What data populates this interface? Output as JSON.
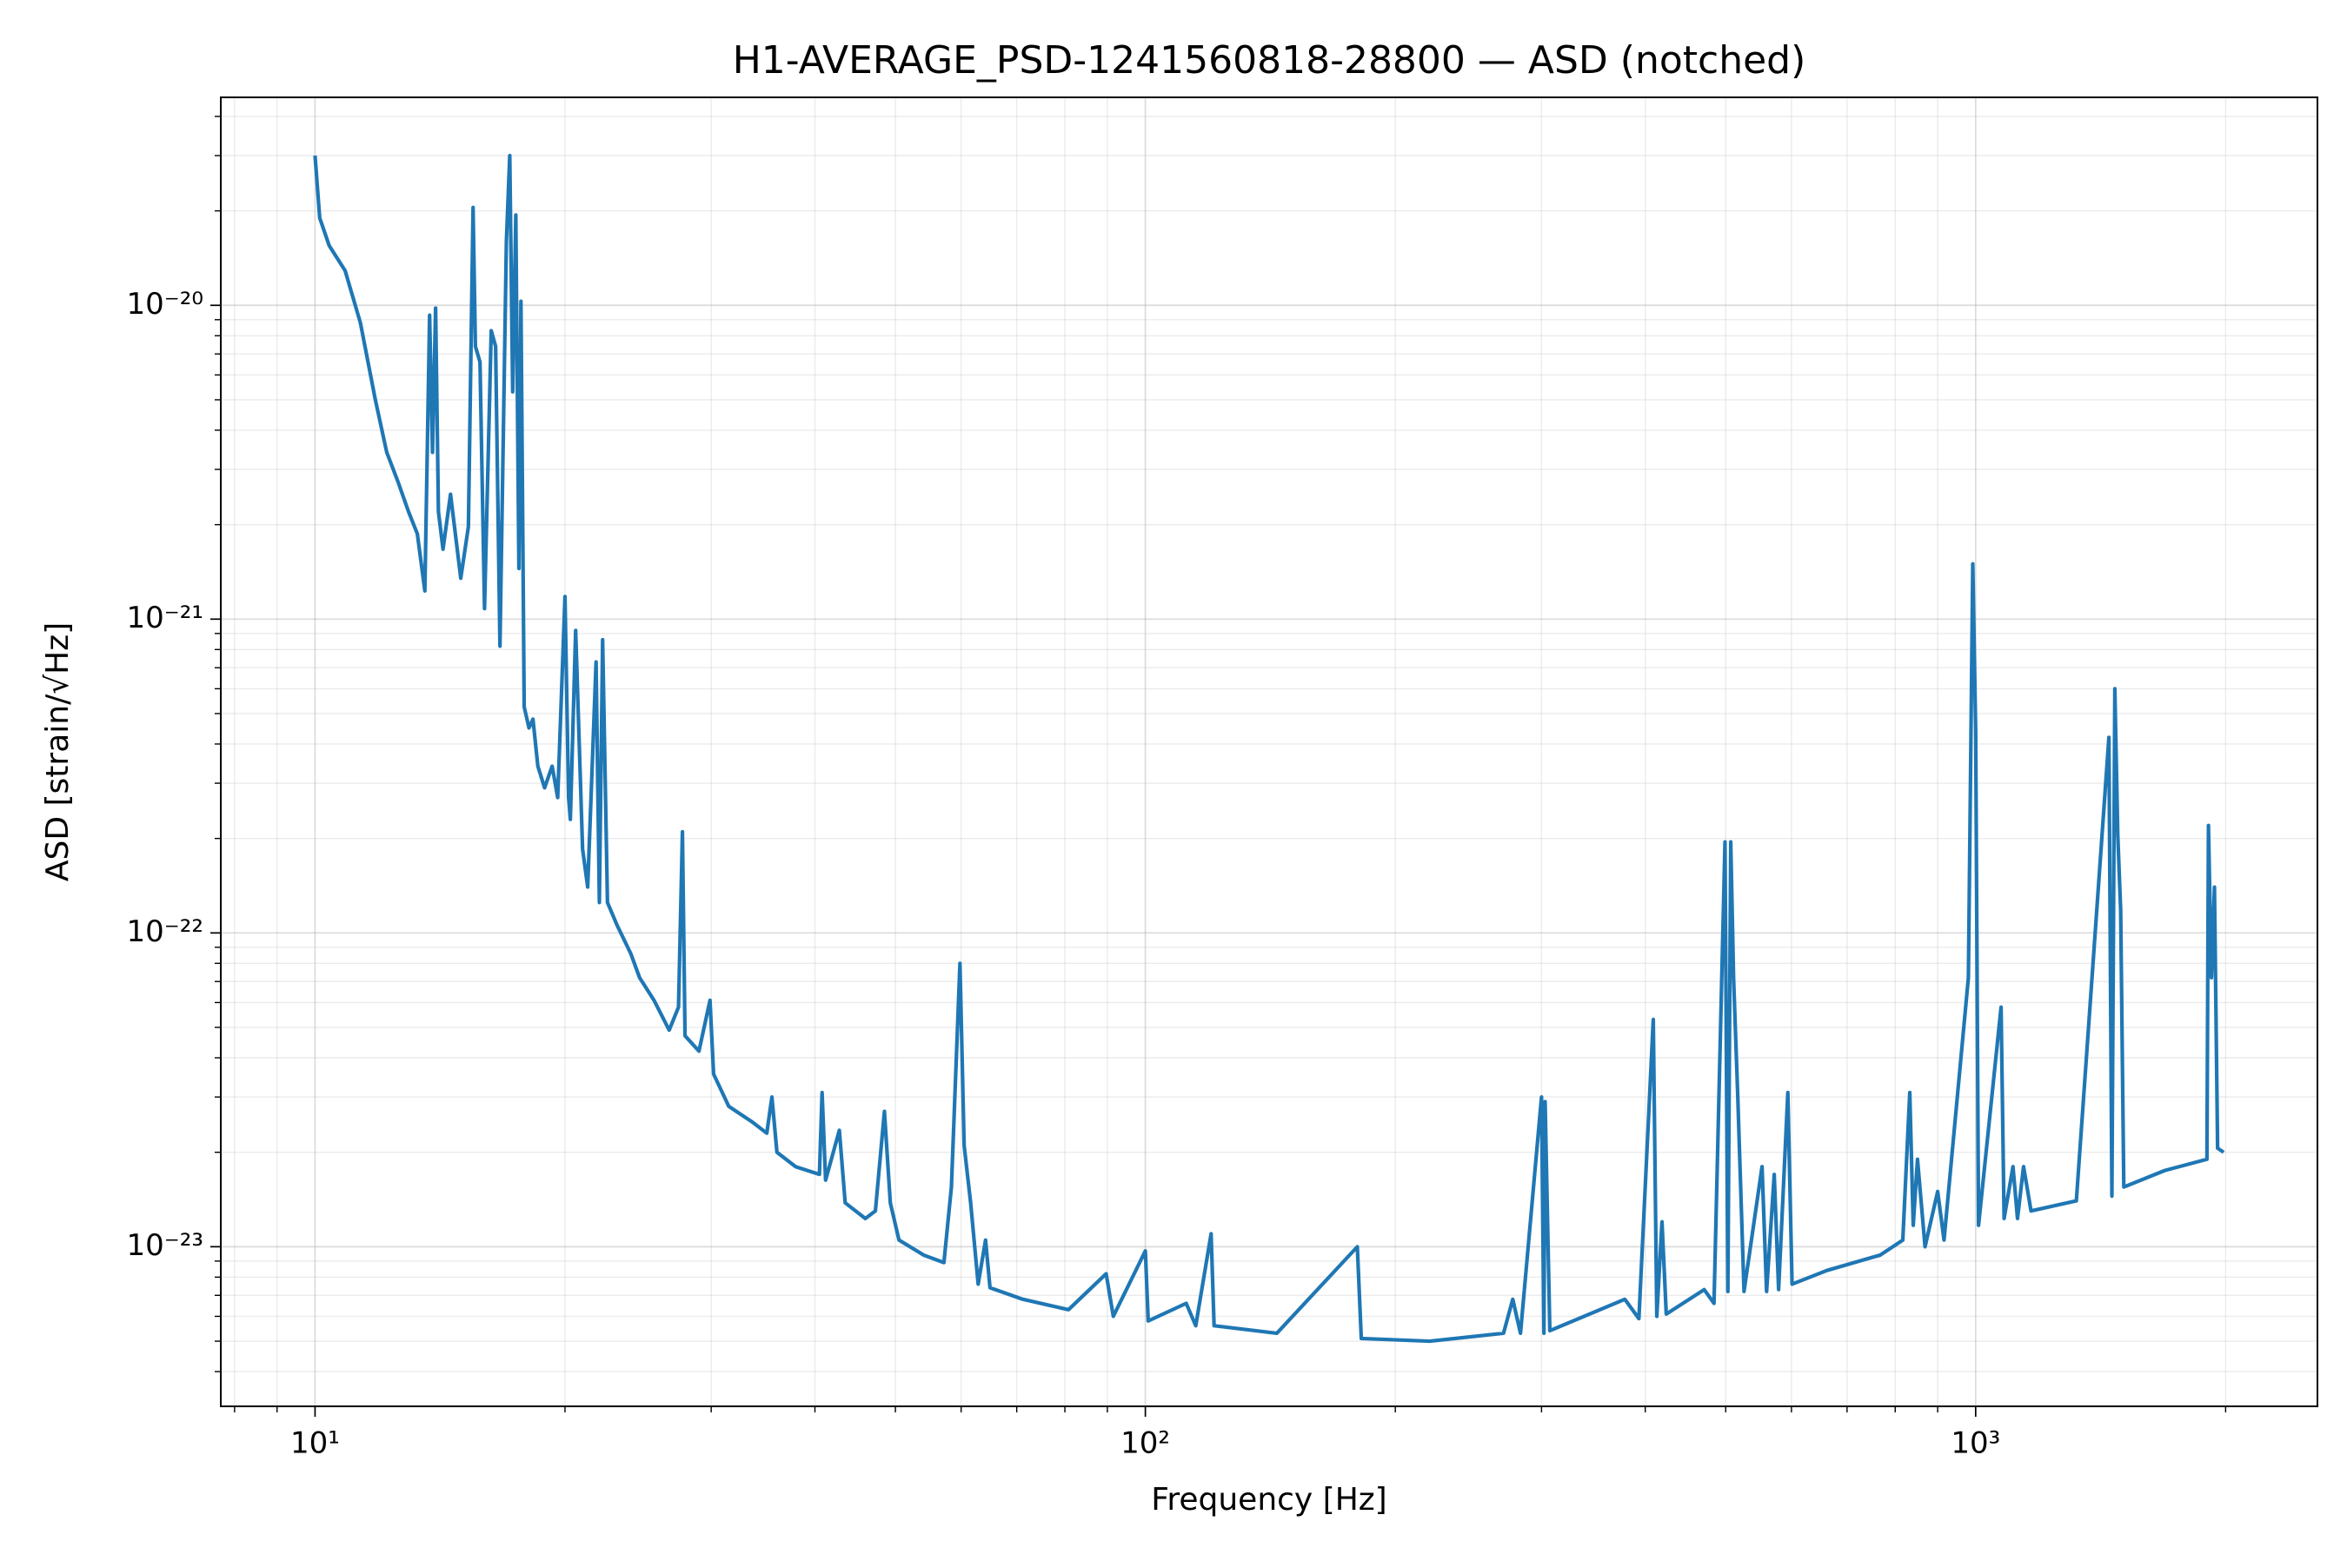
{
  "chart_data": {
    "type": "line",
    "title": "H1-AVERAGE_PSD-1241560818-28800 — ASD (notched)",
    "xlabel": "Frequency [Hz]",
    "ylabel": "ASD [strain/√Hz]",
    "xscale": "log",
    "yscale": "log",
    "grid": true,
    "color": "#1f77b4",
    "xlim": [
      7.7,
      2580
    ],
    "ylim": [
      3.1e-24,
      4.6e-20
    ],
    "xticks": [
      {
        "value": 10,
        "label": "10¹"
      },
      {
        "value": 100,
        "label": "10²"
      },
      {
        "value": 1000,
        "label": "10³"
      }
    ],
    "yticks": [
      {
        "value": 1e-23,
        "label": "10⁻²³"
      },
      {
        "value": 1e-22,
        "label": "10⁻²²"
      },
      {
        "value": 1e-21,
        "label": "10⁻²¹"
      },
      {
        "value": 1e-20,
        "label": "10⁻²⁰"
      }
    ],
    "xminorticks": [
      8,
      9,
      20,
      30,
      40,
      50,
      60,
      70,
      80,
      90,
      200,
      300,
      400,
      500,
      600,
      700,
      800,
      900,
      2000
    ],
    "yminorticks": [
      4e-24,
      5e-24,
      6e-24,
      7e-24,
      8e-24,
      9e-24,
      2e-23,
      3e-23,
      4e-23,
      5e-23,
      6e-23,
      7e-23,
      8e-23,
      9e-23,
      2e-22,
      3e-22,
      4e-22,
      5e-22,
      6e-22,
      7e-22,
      8e-22,
      9e-22,
      2e-21,
      3e-21,
      4e-21,
      5e-21,
      6e-21,
      7e-21,
      8e-21,
      9e-21,
      2e-20,
      3e-20,
      4e-20
    ],
    "x": [
      10,
      10.13,
      10.4,
      10.87,
      11.34,
      11.82,
      12.2,
      12.58,
      12.96,
      13.28,
      13.56,
      13.74,
      13.85,
      13.97,
      14.08,
      14.26,
      14.56,
      14.98,
      15.3,
      15.5,
      15.6,
      15.8,
      16.0,
      16.3,
      16.5,
      16.7,
      17.0,
      17.16,
      17.3,
      17.45,
      17.6,
      17.7,
      17.86,
      18.1,
      18.3,
      18.55,
      18.9,
      19.3,
      19.6,
      20.0,
      20.2,
      20.3,
      20.6,
      21.0,
      21.3,
      21.8,
      22.0,
      22.2,
      22.5,
      23.1,
      24.0,
      24.6,
      25.6,
      26.7,
      27.4,
      27.7,
      27.9,
      29.0,
      29.9,
      30.2,
      31.5,
      33.6,
      35.0,
      35.5,
      36.0,
      37.9,
      40.5,
      40.8,
      41.2,
      42.8,
      43.5,
      46.0,
      47.3,
      48.5,
      49.3,
      50.5,
      54.1,
      57.2,
      58.4,
      59.8,
      60.5,
      61.6,
      62.9,
      64.2,
      65.0,
      71.2,
      80.8,
      89.7,
      91.5,
      100,
      100.8,
      112,
      115,
      120,
      121,
      144,
      180,
      182,
      220,
      270,
      277,
      283,
      300,
      302,
      303,
      307,
      378,
      393,
      409,
      413,
      419,
      424,
      471,
      484,
      499,
      503,
      507,
      511,
      517,
      526,
      553,
      560,
      572,
      579,
      594,
      601,
      662,
      767,
      817,
      833,
      841,
      851,
      869,
      900,
      916,
      980,
      992,
      1000,
      1008,
      1073,
      1082,
      1109,
      1123,
      1142,
      1166,
      1322,
      1447,
      1459,
      1471,
      1483,
      1495,
      1508,
      1690,
      1899,
      1907,
      1923,
      1939,
      1956,
      1989
    ],
    "values": [
      3e-20,
      1.9e-20,
      1.55e-20,
      1.29e-20,
      8.8e-21,
      5e-21,
      3.4e-21,
      2.75e-21,
      2.2e-21,
      1.87e-21,
      1.23e-21,
      9.3e-21,
      3.4e-21,
      9.8e-21,
      2.2e-21,
      1.67e-21,
      2.5e-21,
      1.35e-21,
      1.97e-21,
      2.05e-20,
      7.4e-21,
      6.6e-21,
      1.08e-21,
      8.3e-21,
      7.4e-21,
      8.2e-22,
      1.6e-20,
      3e-20,
      5.3e-21,
      1.94e-20,
      1.45e-21,
      1.03e-20,
      5.25e-22,
      4.5e-22,
      4.8e-22,
      3.4e-22,
      2.9e-22,
      3.4e-22,
      2.7e-22,
      1.18e-21,
      2.7e-22,
      2.3e-22,
      9.2e-22,
      1.85e-22,
      1.4e-22,
      7.3e-22,
      1.25e-22,
      8.6e-22,
      1.25e-22,
      1.06e-22,
      8.6e-23,
      7.2e-23,
      6.1e-23,
      4.9e-23,
      5.8e-23,
      2.1e-22,
      4.7e-23,
      4.2e-23,
      6.1e-23,
      3.55e-23,
      2.8e-23,
      2.5e-23,
      2.3e-23,
      3e-23,
      2e-23,
      1.8e-23,
      1.7e-23,
      3.1e-23,
      1.63e-23,
      2.35e-23,
      1.38e-23,
      1.23e-23,
      1.3e-23,
      2.7e-23,
      1.38e-23,
      1.05e-23,
      9.4e-24,
      8.9e-24,
      1.55e-23,
      8e-23,
      2.1e-23,
      1.38e-23,
      7.6e-24,
      1.05e-23,
      7.4e-24,
      6.8e-24,
      6.3e-24,
      8.2e-24,
      6e-24,
      9.7e-24,
      5.8e-24,
      6.6e-24,
      5.6e-24,
      1.1e-23,
      5.6e-24,
      5.3e-24,
      1e-23,
      5.1e-24,
      5e-24,
      5.3e-24,
      6.8e-24,
      5.3e-24,
      3e-23,
      5.3e-24,
      2.9e-23,
      5.4e-24,
      6.8e-24,
      5.9e-24,
      5.3e-23,
      6e-24,
      1.2e-23,
      6.1e-24,
      7.3e-24,
      6.6e-24,
      1.95e-22,
      7.2e-24,
      1.95e-22,
      7.2e-23,
      3e-23,
      7.2e-24,
      1.8e-23,
      7.2e-24,
      1.7e-23,
      7.3e-24,
      3.1e-23,
      7.6e-24,
      8.4e-24,
      9.4e-24,
      1.05e-23,
      3.1e-23,
      1.17e-23,
      1.9e-23,
      1e-23,
      1.5e-23,
      1.05e-23,
      7.2e-23,
      1.5e-21,
      4.45e-22,
      1.17e-23,
      5.8e-23,
      1.23e-23,
      1.8e-23,
      1.23e-23,
      1.8e-23,
      1.3e-23,
      1.4e-23,
      4.2e-22,
      1.45e-23,
      6e-22,
      2.05e-22,
      1.18e-22,
      1.55e-23,
      1.75e-23,
      1.9e-23,
      2.2e-22,
      7.2e-23,
      1.4e-22,
      2.06e-23,
      2e-23
    ]
  }
}
